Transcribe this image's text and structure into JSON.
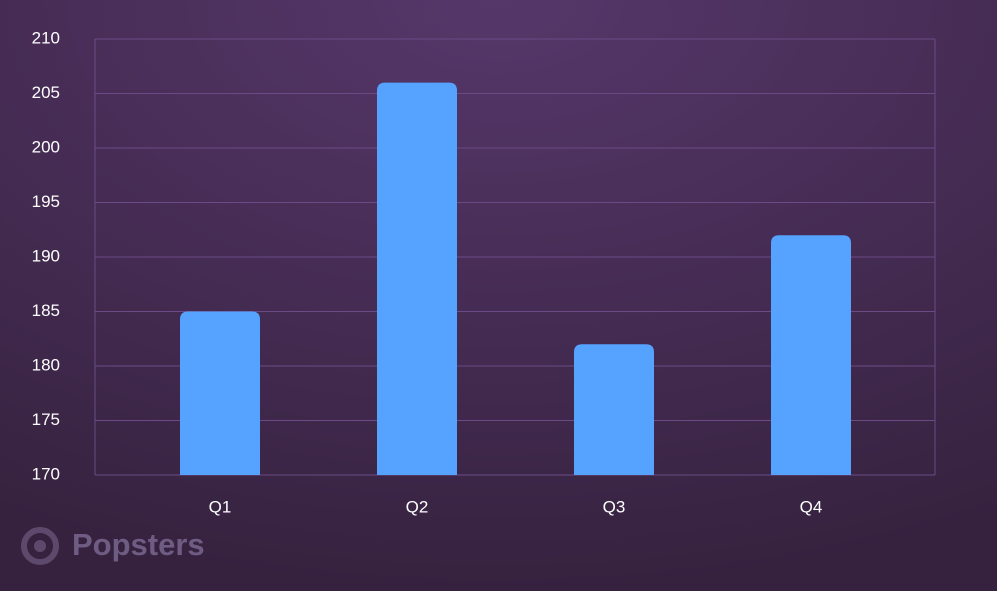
{
  "chart_data": {
    "type": "bar",
    "categories": [
      "Q1",
      "Q2",
      "Q3",
      "Q4"
    ],
    "values": [
      185,
      206,
      182,
      192
    ],
    "color": "#55a2ff",
    "ylim": [
      170,
      210
    ],
    "yticks": [
      170,
      175,
      180,
      185,
      190,
      195,
      200,
      205,
      210
    ],
    "grid": true,
    "watermark": "Popsters"
  }
}
